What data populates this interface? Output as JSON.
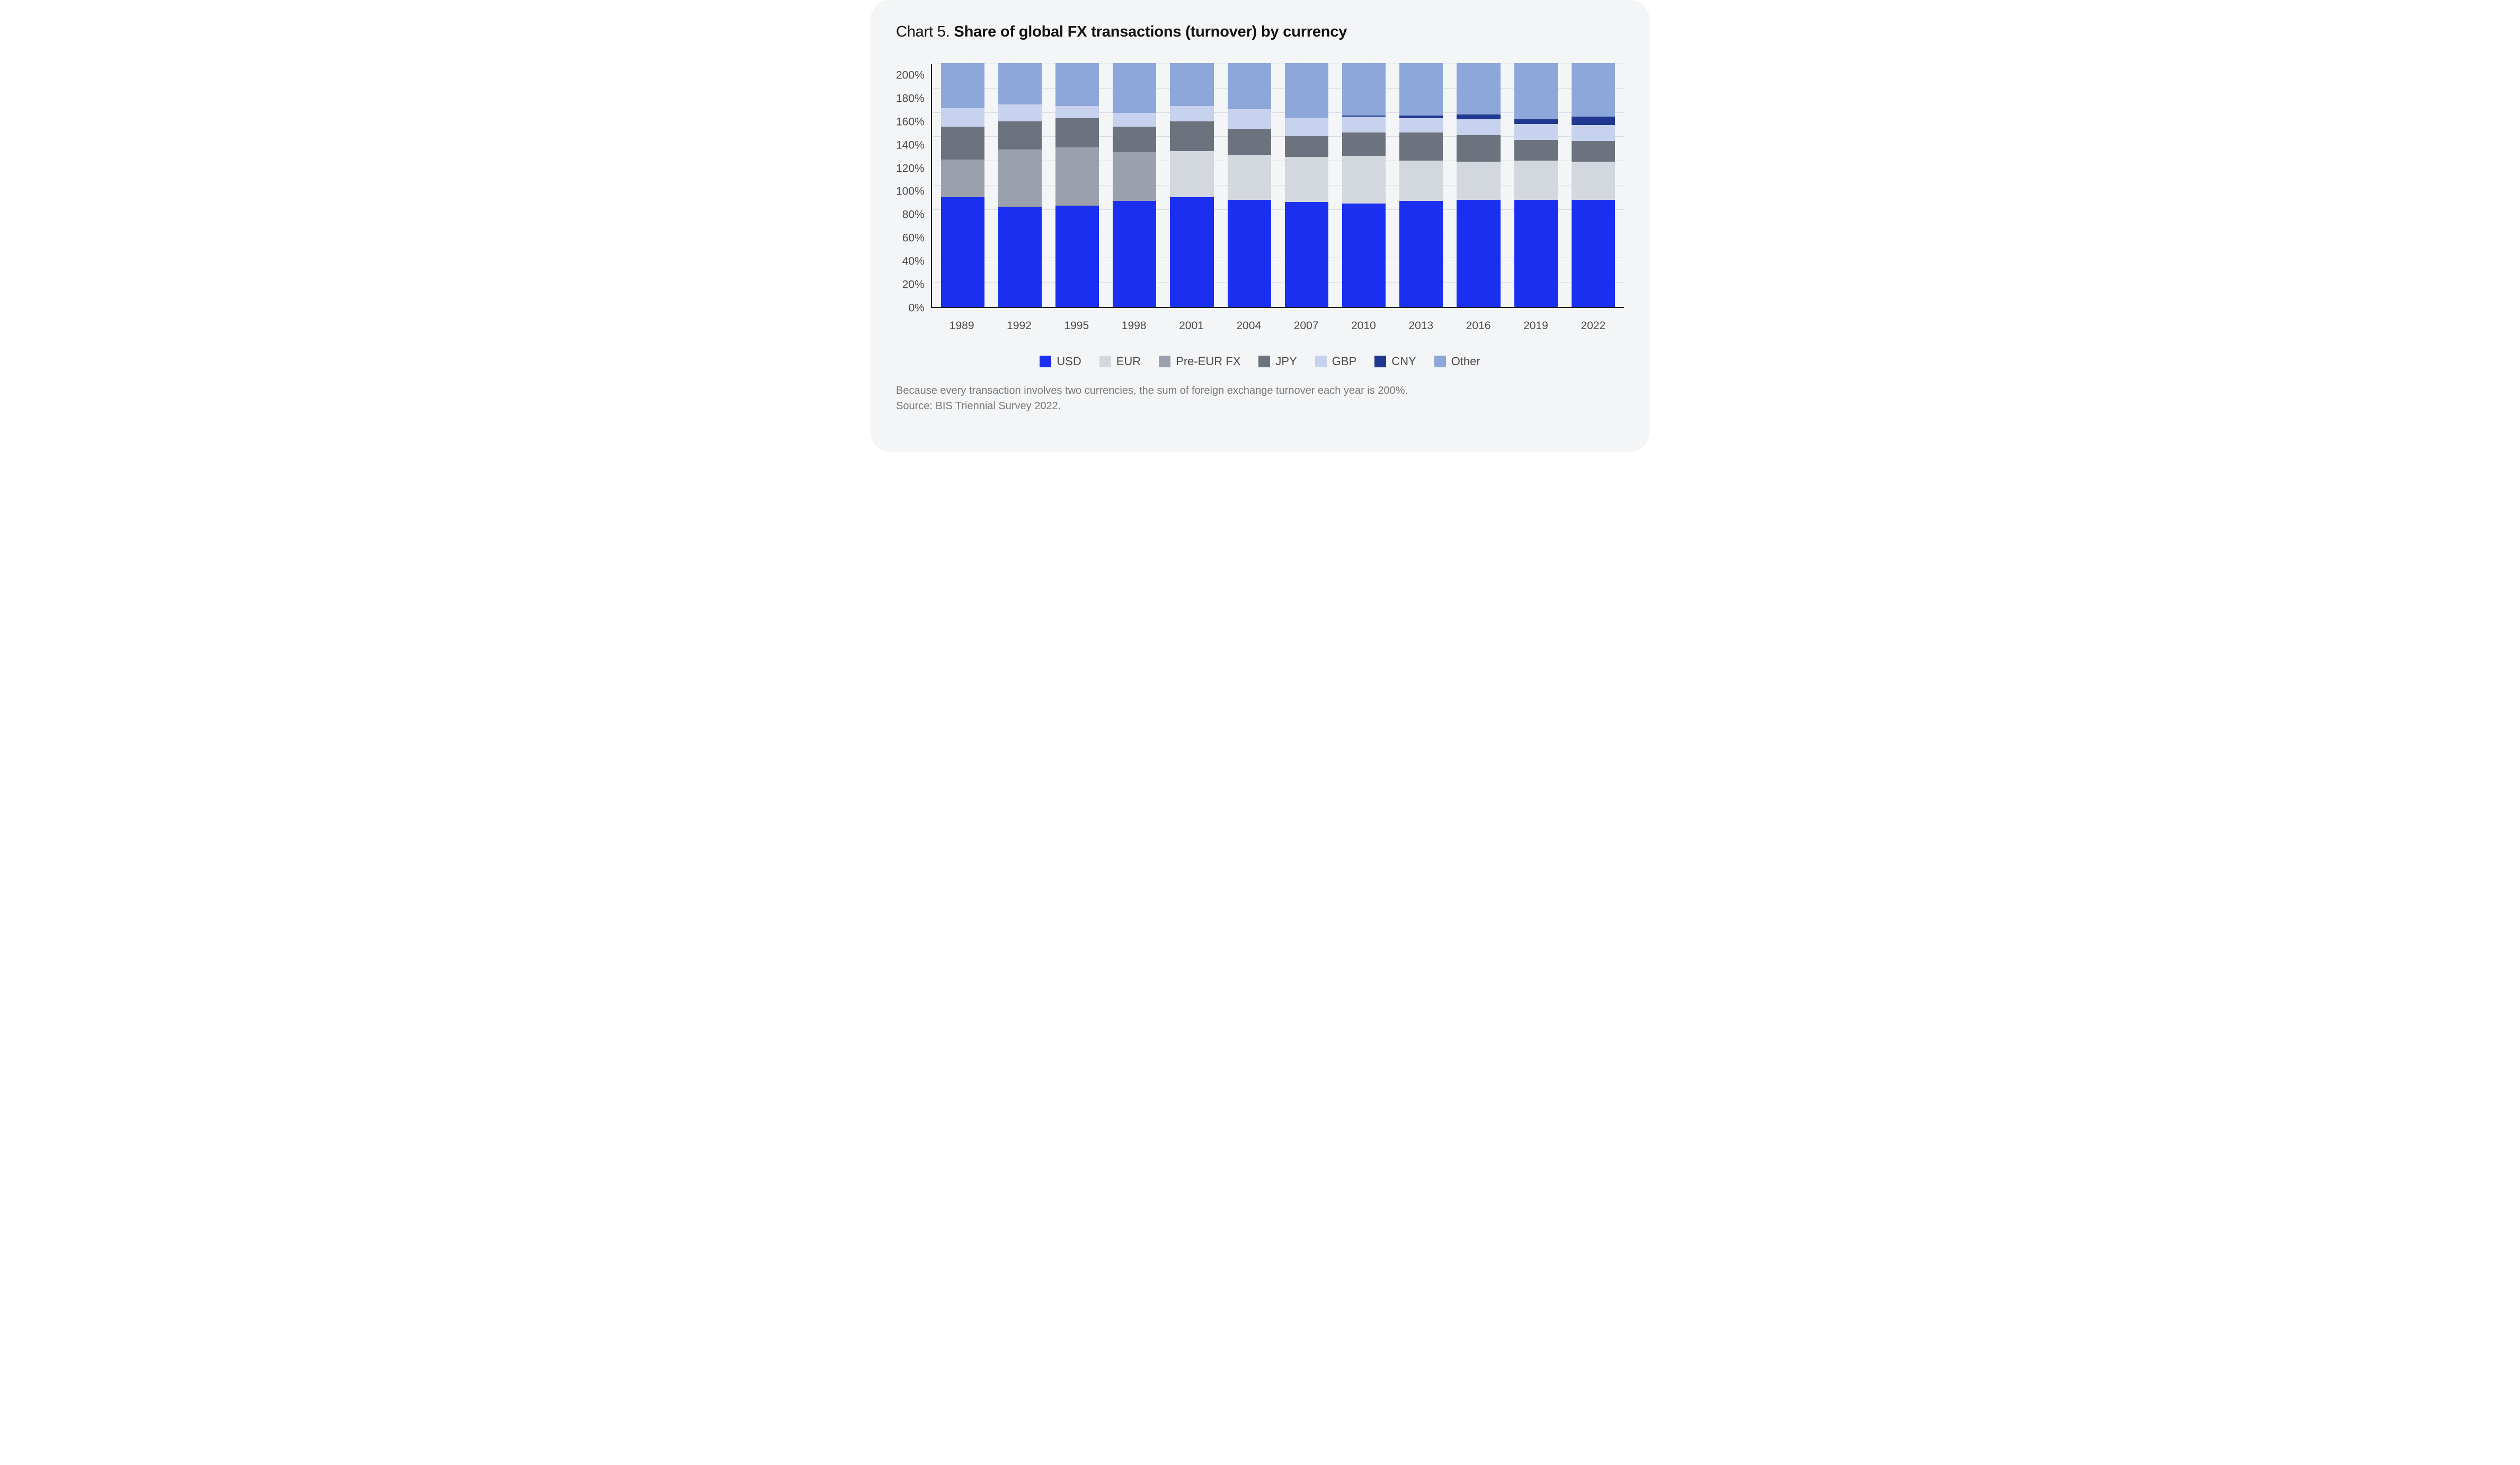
{
  "title_prefix": "Chart 5. ",
  "title_bold": "Share of global FX transactions (turnover) by currency",
  "chart": {
    "type": "stacked_bar",
    "ylim": [
      0,
      200
    ],
    "ytick_step": 20,
    "yticks": [
      "200%",
      "180%",
      "160%",
      "140%",
      "120%",
      "100%",
      "80%",
      "60%",
      "40%",
      "20%",
      "0%"
    ],
    "y_label_fontsize": 21,
    "x_label_fontsize": 21,
    "categories": [
      "1989",
      "1992",
      "1995",
      "1998",
      "2001",
      "2004",
      "2007",
      "2010",
      "2013",
      "2016",
      "2019",
      "2022"
    ],
    "series_order": [
      "USD",
      "EUR",
      "Pre-EUR FX",
      "JPY",
      "GBP",
      "CNY",
      "Other"
    ],
    "series": {
      "USD": {
        "label": "USD",
        "color": "#1a2ff0"
      },
      "EUR": {
        "label": "EUR",
        "color": "#d3d7de"
      },
      "Pre-EUR FX": {
        "label": "Pre-EUR FX",
        "color": "#9aa1ac"
      },
      "JPY": {
        "label": "JPY",
        "color": "#6c737f"
      },
      "GBP": {
        "label": "GBP",
        "color": "#c6d2ee"
      },
      "CNY": {
        "label": "CNY",
        "color": "#20388f"
      },
      "Other": {
        "label": "Other",
        "color": "#8ea7da"
      }
    },
    "data": {
      "1989": {
        "USD": 90,
        "EUR": 0,
        "Pre-EUR FX": 31,
        "JPY": 27,
        "GBP": 15,
        "CNY": 0,
        "Other": 37
      },
      "1992": {
        "USD": 82,
        "EUR": 0,
        "Pre-EUR FX": 47,
        "JPY": 23,
        "GBP": 14,
        "CNY": 0,
        "Other": 34
      },
      "1995": {
        "USD": 83,
        "EUR": 0,
        "Pre-EUR FX": 48,
        "JPY": 24,
        "GBP": 10,
        "CNY": 0,
        "Other": 35
      },
      "1998": {
        "USD": 87,
        "EUR": 0,
        "Pre-EUR FX": 40,
        "JPY": 21,
        "GBP": 11,
        "CNY": 0,
        "Other": 41
      },
      "2001": {
        "USD": 90,
        "EUR": 38,
        "Pre-EUR FX": 0,
        "JPY": 24,
        "GBP": 13,
        "CNY": 0,
        "Other": 35
      },
      "2004": {
        "USD": 88,
        "EUR": 37,
        "Pre-EUR FX": 0,
        "JPY": 21,
        "GBP": 16,
        "CNY": 0,
        "Other": 38
      },
      "2007": {
        "USD": 86,
        "EUR": 37,
        "Pre-EUR FX": 0,
        "JPY": 17,
        "GBP": 15,
        "CNY": 0,
        "Other": 45
      },
      "2010": {
        "USD": 85,
        "EUR": 39,
        "Pre-EUR FX": 0,
        "JPY": 19,
        "GBP": 13,
        "CNY": 1,
        "Other": 43
      },
      "2013": {
        "USD": 87,
        "EUR": 33,
        "Pre-EUR FX": 0,
        "JPY": 23,
        "GBP": 12,
        "CNY": 2,
        "Other": 43
      },
      "2016": {
        "USD": 88,
        "EUR": 31,
        "Pre-EUR FX": 0,
        "JPY": 22,
        "GBP": 13,
        "CNY": 4,
        "Other": 42
      },
      "2019": {
        "USD": 88,
        "EUR": 32,
        "Pre-EUR FX": 0,
        "JPY": 17,
        "GBP": 13,
        "CNY": 4,
        "Other": 46
      },
      "2022": {
        "USD": 88,
        "EUR": 31,
        "Pre-EUR FX": 0,
        "JPY": 17,
        "GBP": 13,
        "CNY": 7,
        "Other": 44
      }
    },
    "bar_width_ratio": 0.76,
    "axis_color": "#1d1d1d",
    "grid_color": "#d8dbe0",
    "background_color": "#f4f5f7",
    "title_color": "#111111",
    "title_fontsize": 29
  },
  "legend_fontsize": 22,
  "footnote_line1": "Because every transaction involves two currencies, the sum of foreign exchange turnover each year is 200%.",
  "footnote_line2": "Source: BIS Triennial Survey 2022.",
  "footnote_color": "#777777",
  "footnote_fontsize": 20
}
